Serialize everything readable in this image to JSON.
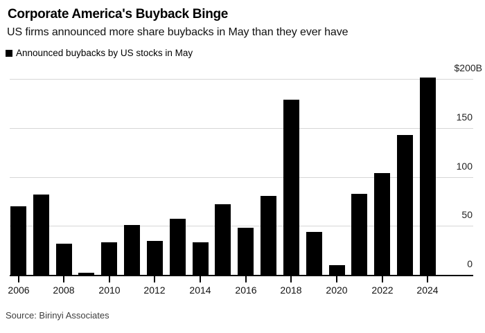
{
  "header": {
    "title": "Corporate America's Buyback Binge",
    "subtitle": "US firms announced more share buybacks in May than they ever have"
  },
  "legend": {
    "label": "Announced buybacks by US stocks in May",
    "swatch_color": "#000000"
  },
  "source": "Source: Birinyi Associates",
  "chart_data": {
    "type": "bar",
    "title": "Corporate America's Buyback Binge",
    "subtitle": "US firms announced more share buybacks in May than they ever have",
    "legend_entries": [
      "Announced buybacks by US stocks in May"
    ],
    "legend_position": "top-left",
    "source": "Source: Birinyi Associates",
    "categories": [
      2006,
      2007,
      2008,
      2009,
      2010,
      2011,
      2012,
      2013,
      2014,
      2015,
      2016,
      2017,
      2018,
      2019,
      2020,
      2021,
      2022,
      2023,
      2024
    ],
    "values": [
      70,
      82,
      32,
      2,
      33,
      51,
      35,
      57,
      33,
      72,
      48,
      81,
      179,
      44,
      10,
      83,
      104,
      143,
      202
    ],
    "units": "billions USD",
    "xlabel": "",
    "ylabel": "",
    "xtick_labels": [
      "2006",
      "2008",
      "2010",
      "2012",
      "2014",
      "2016",
      "2018",
      "2020",
      "2022",
      "2024"
    ],
    "yticks": [
      0,
      50,
      100,
      150,
      200
    ],
    "ytick_labels": [
      "0",
      "50",
      "100",
      "150",
      "$200B"
    ],
    "ylim": [
      0,
      205
    ],
    "y_axis_side": "right",
    "grid": true,
    "bar_color": "#000000",
    "grid_color": "#d6d6d6",
    "axis_color": "#000000",
    "background_color": "#ffffff"
  }
}
